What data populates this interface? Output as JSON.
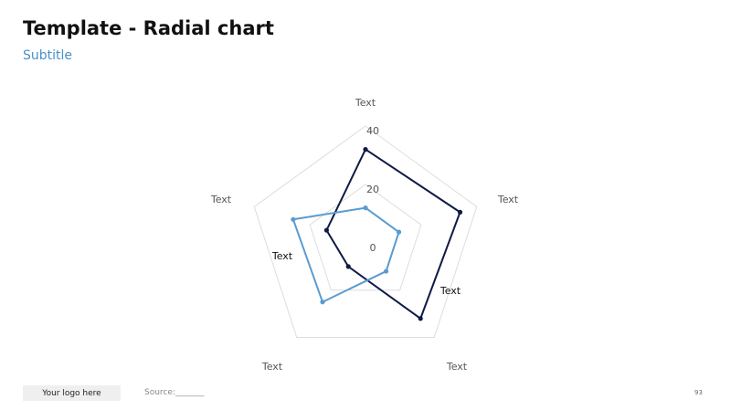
{
  "header": {
    "title": "Template - Radial chart",
    "subtitle": "Subtitle"
  },
  "footer": {
    "logo_text": "Your logo here",
    "source_label": "Source:_______",
    "page_number": "93"
  },
  "colors": {
    "dark_series": "#0f1a45",
    "light_series": "#5b9bd0",
    "grid": "#dddddd"
  },
  "chart_data": {
    "type": "radar",
    "categories": [
      "Text",
      "Text",
      "Text",
      "Text",
      "Text"
    ],
    "rlim": [
      0,
      40
    ],
    "rticks": [
      0,
      20,
      40
    ],
    "rtick_labels": [
      "0",
      "20",
      "40"
    ],
    "series": [
      {
        "values": [
          32,
          34,
          32,
          10,
          14
        ]
      },
      {
        "values": [
          12,
          12,
          12,
          25,
          26
        ]
      }
    ],
    "annotations": [
      "Text",
      "Text"
    ],
    "grid": true
  }
}
